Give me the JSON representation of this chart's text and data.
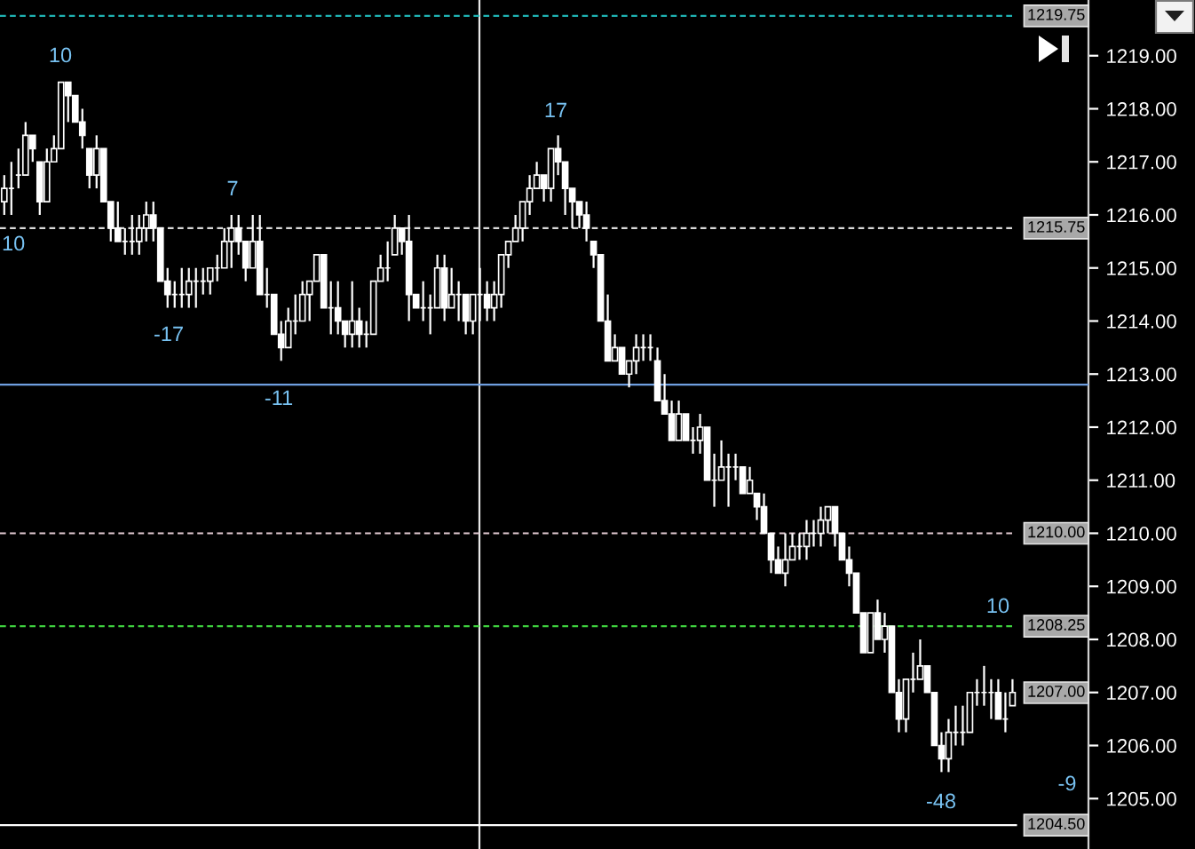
{
  "chart_data": {
    "type": "candlestick",
    "color": "#ffffff",
    "categories": [
      null,
      null,
      null,
      null,
      null,
      null,
      null,
      null,
      null,
      null,
      null,
      null,
      null,
      null,
      null,
      null,
      null,
      null,
      null,
      null,
      null,
      null,
      null,
      null,
      null,
      null,
      null,
      null,
      null,
      null,
      null,
      null,
      null,
      null,
      null,
      null,
      null,
      null,
      null,
      null,
      null,
      null,
      null,
      null,
      null,
      null,
      null,
      null,
      null,
      null,
      null,
      null,
      null,
      null,
      null,
      null,
      null,
      null,
      null,
      null,
      null,
      null,
      null,
      null,
      null,
      null,
      null,
      null,
      null,
      null,
      null,
      null,
      null,
      null,
      null,
      null,
      null,
      null,
      null,
      null,
      null,
      null,
      null,
      null,
      null,
      null,
      null,
      null,
      null,
      null,
      null,
      null,
      null,
      null,
      null,
      null,
      null,
      null,
      null,
      null,
      null,
      null,
      null,
      null,
      null,
      null,
      null,
      null,
      null,
      null,
      null,
      null,
      null,
      null,
      null,
      null,
      null,
      null,
      null,
      null,
      null,
      null,
      null,
      null,
      null,
      null,
      null,
      null,
      null,
      null,
      null,
      null,
      null,
      null,
      null,
      null,
      null,
      null,
      null,
      null,
      null,
      null,
      null
    ],
    "ohlc": [
      [
        1216.25,
        1216.75,
        1216,
        1216.5
      ],
      [
        1216.5,
        1217,
        1216,
        1216.5
      ],
      [
        1216.75,
        1217.25,
        1216.5,
        1216.75
      ],
      [
        1216.75,
        1217.75,
        1216.75,
        1217.5
      ],
      [
        1217.5,
        1217.5,
        1217,
        1217.25
      ],
      [
        1217,
        1217,
        1216,
        1216.25
      ],
      [
        1216.25,
        1217.25,
        1216.25,
        1217
      ],
      [
        1217,
        1217.5,
        1217,
        1217.25
      ],
      [
        1217.25,
        1218.5,
        1217.25,
        1218.5
      ],
      [
        1218.5,
        1218.5,
        1217.75,
        1218.25
      ],
      [
        1218.25,
        1218.25,
        1217.75,
        1217.75
      ],
      [
        1217.75,
        1218,
        1217.25,
        1217.5
      ],
      [
        1217.25,
        1217.25,
        1216.5,
        1216.75
      ],
      [
        1216.75,
        1217.5,
        1216.5,
        1217.25
      ],
      [
        1217.25,
        1217.25,
        1216.25,
        1216.25
      ],
      [
        1216.25,
        1216.25,
        1215.5,
        1215.75
      ],
      [
        1215.75,
        1216.25,
        1215.5,
        1215.5
      ],
      [
        1215.5,
        1215.75,
        1215.25,
        1215.5
      ],
      [
        1215.5,
        1216,
        1215.25,
        1215.5
      ],
      [
        1215.5,
        1216,
        1215.25,
        1215.75
      ],
      [
        1215.75,
        1216.25,
        1215.5,
        1216
      ],
      [
        1216,
        1216.25,
        1215.5,
        1215.75
      ],
      [
        1215.75,
        1215.75,
        1214.75,
        1214.75
      ],
      [
        1214.75,
        1215,
        1214.25,
        1214.5
      ],
      [
        1214.5,
        1214.75,
        1214.25,
        1214.5
      ],
      [
        1214.5,
        1215,
        1214.25,
        1214.5
      ],
      [
        1214.5,
        1215,
        1214.25,
        1214.75
      ],
      [
        1214.75,
        1215,
        1214.25,
        1214.75
      ],
      [
        1214.75,
        1215,
        1214.5,
        1214.75
      ],
      [
        1214.75,
        1215,
        1214.5,
        1215
      ],
      [
        1215,
        1215.25,
        1214.75,
        1215
      ],
      [
        1215,
        1215.75,
        1215,
        1215.5
      ],
      [
        1215.5,
        1216,
        1215,
        1215.75
      ],
      [
        1215.75,
        1216,
        1215.25,
        1215.5
      ],
      [
        1215.5,
        1215.5,
        1214.75,
        1215
      ],
      [
        1215,
        1216,
        1215,
        1215.5
      ],
      [
        1215.5,
        1216,
        1214.5,
        1214.5
      ],
      [
        1214.5,
        1215,
        1214.25,
        1214.5
      ],
      [
        1214.5,
        1214.5,
        1213.75,
        1213.75
      ],
      [
        1213.75,
        1214,
        1213.25,
        1213.5
      ],
      [
        1213.5,
        1214.25,
        1213.5,
        1214
      ],
      [
        1214,
        1214.5,
        1213.75,
        1214
      ],
      [
        1214,
        1214.75,
        1214,
        1214.5
      ],
      [
        1214.5,
        1214.75,
        1214,
        1214.75
      ],
      [
        1214.75,
        1215.25,
        1214.75,
        1215.25
      ],
      [
        1215.25,
        1215.25,
        1214.25,
        1214.25
      ],
      [
        1214.25,
        1214.75,
        1213.75,
        1214.25
      ],
      [
        1214.25,
        1214.75,
        1213.75,
        1214
      ],
      [
        1214,
        1214,
        1213.5,
        1213.75
      ],
      [
        1213.75,
        1214.75,
        1213.5,
        1214
      ],
      [
        1214,
        1214.25,
        1213.5,
        1213.75
      ],
      [
        1213.75,
        1214,
        1213.5,
        1213.75
      ],
      [
        1213.75,
        1214.75,
        1213.75,
        1214.75
      ],
      [
        1214.75,
        1215.25,
        1214.75,
        1215
      ],
      [
        1215,
        1215.5,
        1214.75,
        1215
      ],
      [
        1215.25,
        1216,
        1215.25,
        1215.75
      ],
      [
        1215.75,
        1215.75,
        1215.25,
        1215.5
      ],
      [
        1215.5,
        1216,
        1214,
        1214.5
      ],
      [
        1214.5,
        1214.5,
        1214.25,
        1214.25
      ],
      [
        1214.25,
        1214.75,
        1214,
        1214.25
      ],
      [
        1214.25,
        1214.5,
        1213.75,
        1214.25
      ],
      [
        1214.25,
        1215.25,
        1214.25,
        1215
      ],
      [
        1215,
        1215.25,
        1214,
        1214.25
      ],
      [
        1214.25,
        1215,
        1214.25,
        1214.5
      ],
      [
        1214.5,
        1214.75,
        1214,
        1214.5
      ],
      [
        1214.5,
        1214.5,
        1213.75,
        1214
      ],
      [
        1214,
        1214.5,
        1213.75,
        1214.5
      ],
      [
        1214.5,
        1215,
        1214,
        1214.5
      ],
      [
        1214.5,
        1214.75,
        1214,
        1214.25
      ],
      [
        1214.25,
        1214.75,
        1214,
        1214.5
      ],
      [
        1214.5,
        1215.25,
        1214.25,
        1215.25
      ],
      [
        1215.25,
        1215.5,
        1215,
        1215.5
      ],
      [
        1215.5,
        1216,
        1215.5,
        1215.75
      ],
      [
        1215.75,
        1216.25,
        1215.5,
        1216.25
      ],
      [
        1216.25,
        1216.75,
        1216,
        1216.5
      ],
      [
        1216.5,
        1217,
        1216.5,
        1216.75
      ],
      [
        1216.75,
        1216.75,
        1216.25,
        1216.5
      ],
      [
        1216.5,
        1217.25,
        1216.25,
        1217.25
      ],
      [
        1217.25,
        1217.5,
        1216.75,
        1217
      ],
      [
        1217,
        1217,
        1216,
        1216.5
      ],
      [
        1216.5,
        1216.5,
        1215.75,
        1216.25
      ],
      [
        1216.25,
        1216.25,
        1215.75,
        1216
      ],
      [
        1216,
        1216.25,
        1215.5,
        1215.75
      ],
      [
        1215.5,
        1215.5,
        1215,
        1215.25
      ],
      [
        1215.25,
        1215.25,
        1214,
        1214
      ],
      [
        1214,
        1214.5,
        1213.25,
        1213.25
      ],
      [
        1213.25,
        1213.75,
        1213.25,
        1213.5
      ],
      [
        1213.5,
        1213.5,
        1213,
        1213
      ],
      [
        1213,
        1213.25,
        1212.75,
        1213.25
      ],
      [
        1213.25,
        1213.75,
        1213,
        1213.5
      ],
      [
        1213.5,
        1213.75,
        1213.25,
        1213.5
      ],
      [
        1213.5,
        1213.75,
        1213.25,
        1213.5
      ],
      [
        1213.25,
        1213.5,
        1212.5,
        1212.5
      ],
      [
        1212.5,
        1213,
        1212.25,
        1212.25
      ],
      [
        1212.25,
        1212.5,
        1211.75,
        1211.75
      ],
      [
        1211.75,
        1212.5,
        1211.75,
        1212.25
      ],
      [
        1212.25,
        1212.25,
        1211.75,
        1211.75
      ],
      [
        1211.75,
        1212,
        1211.5,
        1211.75
      ],
      [
        1211.75,
        1212.25,
        1211.5,
        1212
      ],
      [
        1212,
        1212,
        1211,
        1211
      ],
      [
        1211,
        1211.5,
        1210.5,
        1211
      ],
      [
        1211,
        1211.75,
        1211,
        1211.25
      ],
      [
        1211.25,
        1211.5,
        1210.5,
        1211.25
      ],
      [
        1211.25,
        1211.5,
        1211,
        1211.25
      ],
      [
        1211.25,
        1211.25,
        1210.75,
        1210.75
      ],
      [
        1210.75,
        1211.25,
        1210.75,
        1211
      ],
      [
        1210.75,
        1210.75,
        1210.25,
        1210.5
      ],
      [
        1210.5,
        1210.75,
        1210,
        1210
      ],
      [
        1210,
        1210,
        1209.25,
        1209.5
      ],
      [
        1209.5,
        1209.75,
        1209.25,
        1209.25
      ],
      [
        1209.25,
        1210,
        1209,
        1209.5
      ],
      [
        1209.5,
        1210,
        1209.5,
        1209.75
      ],
      [
        1209.75,
        1210,
        1209.5,
        1209.75
      ],
      [
        1209.75,
        1210.25,
        1209.5,
        1210
      ],
      [
        1210,
        1210.25,
        1209.75,
        1210
      ],
      [
        1210,
        1210.5,
        1209.75,
        1210.25
      ],
      [
        1210.25,
        1210.5,
        1210,
        1210.5
      ],
      [
        1210.5,
        1210.5,
        1209.75,
        1210
      ],
      [
        1210,
        1210,
        1209.5,
        1209.5
      ],
      [
        1209.5,
        1209.75,
        1209,
        1209.25
      ],
      [
        1209.25,
        1209.25,
        1208.5,
        1208.5
      ],
      [
        1208.5,
        1208.5,
        1207.75,
        1207.75
      ],
      [
        1207.75,
        1208.5,
        1207.75,
        1208.5
      ],
      [
        1208.5,
        1208.75,
        1208,
        1208
      ],
      [
        1208,
        1208.5,
        1207.75,
        1208.25
      ],
      [
        1208.25,
        1208.25,
        1207,
        1207
      ],
      [
        1207,
        1207.25,
        1206.25,
        1206.5
      ],
      [
        1206.5,
        1207.25,
        1206.25,
        1207.25
      ],
      [
        1207.25,
        1207.75,
        1207,
        1207.25
      ],
      [
        1207.25,
        1208,
        1207.25,
        1207.5
      ],
      [
        1207.5,
        1207.5,
        1207,
        1207
      ],
      [
        1207,
        1207,
        1206,
        1206
      ],
      [
        1206,
        1206.25,
        1205.5,
        1205.75
      ],
      [
        1205.75,
        1206.5,
        1205.5,
        1206.25
      ],
      [
        1206.25,
        1206.75,
        1206,
        1206.25
      ],
      [
        1206.25,
        1206.75,
        1206,
        1206.25
      ],
      [
        1206.25,
        1207,
        1206.25,
        1207
      ],
      [
        1207,
        1207.25,
        1206.75,
        1207
      ],
      [
        1207,
        1207.5,
        1206.75,
        1207
      ],
      [
        1207,
        1207.25,
        1206.5,
        1207
      ],
      [
        1207,
        1207.25,
        1206.5,
        1206.5
      ],
      [
        1206.5,
        1207,
        1206.25,
        1206.5
      ],
      [
        1206.75,
        1207.25,
        1206.75,
        1207
      ]
    ],
    "ylim": [
      1204.05,
      1220.05
    ],
    "yticks": [
      {
        "value": 1205,
        "label": "1205.00"
      },
      {
        "value": 1206,
        "label": "1206.00"
      },
      {
        "value": 1207,
        "label": "1207.00"
      },
      {
        "value": 1208,
        "label": "1208.00"
      },
      {
        "value": 1209,
        "label": "1209.00"
      },
      {
        "value": 1210,
        "label": "1210.00"
      },
      {
        "value": 1211,
        "label": "1211.00"
      },
      {
        "value": 1212,
        "label": "1212.00"
      },
      {
        "value": 1213,
        "label": "1213.00"
      },
      {
        "value": 1214,
        "label": "1214.00"
      },
      {
        "value": 1215,
        "label": "1215.00"
      },
      {
        "value": 1216,
        "label": "1216.00"
      },
      {
        "value": 1217,
        "label": "1217.00"
      },
      {
        "value": 1218,
        "label": "1218.00"
      },
      {
        "value": 1219,
        "label": "1219.00"
      }
    ],
    "tick_labels": "y",
    "ref_lines": [
      {
        "axis": "y",
        "value": 1219.75,
        "label": "1219.75",
        "color": "#1fb3b3",
        "line_style": "dashed"
      },
      {
        "axis": "y",
        "value": 1215.75,
        "label": "1215.75",
        "color": "#d9d9d9",
        "line_style": "dashed"
      },
      {
        "axis": "y",
        "value": 1212.8,
        "color": "#6f9fe0",
        "line_style": "solid"
      },
      {
        "axis": "y",
        "value": 1210,
        "label": "1210.00",
        "color": "#e3cbd3",
        "line_style": "dashed"
      },
      {
        "axis": "y",
        "value": 1208.25,
        "label": "1208.25",
        "color": "#3fd23f",
        "line_style": "dashed"
      },
      {
        "axis": "y",
        "value": 1204.5,
        "label": "1204.50",
        "color": "#ffffff",
        "line_style": "solid"
      }
    ],
    "annotations": [
      "10",
      "-17",
      "7",
      "-11",
      "17",
      "-48",
      "10",
      "10",
      "-9",
      "1207.00"
    ]
  }
}
